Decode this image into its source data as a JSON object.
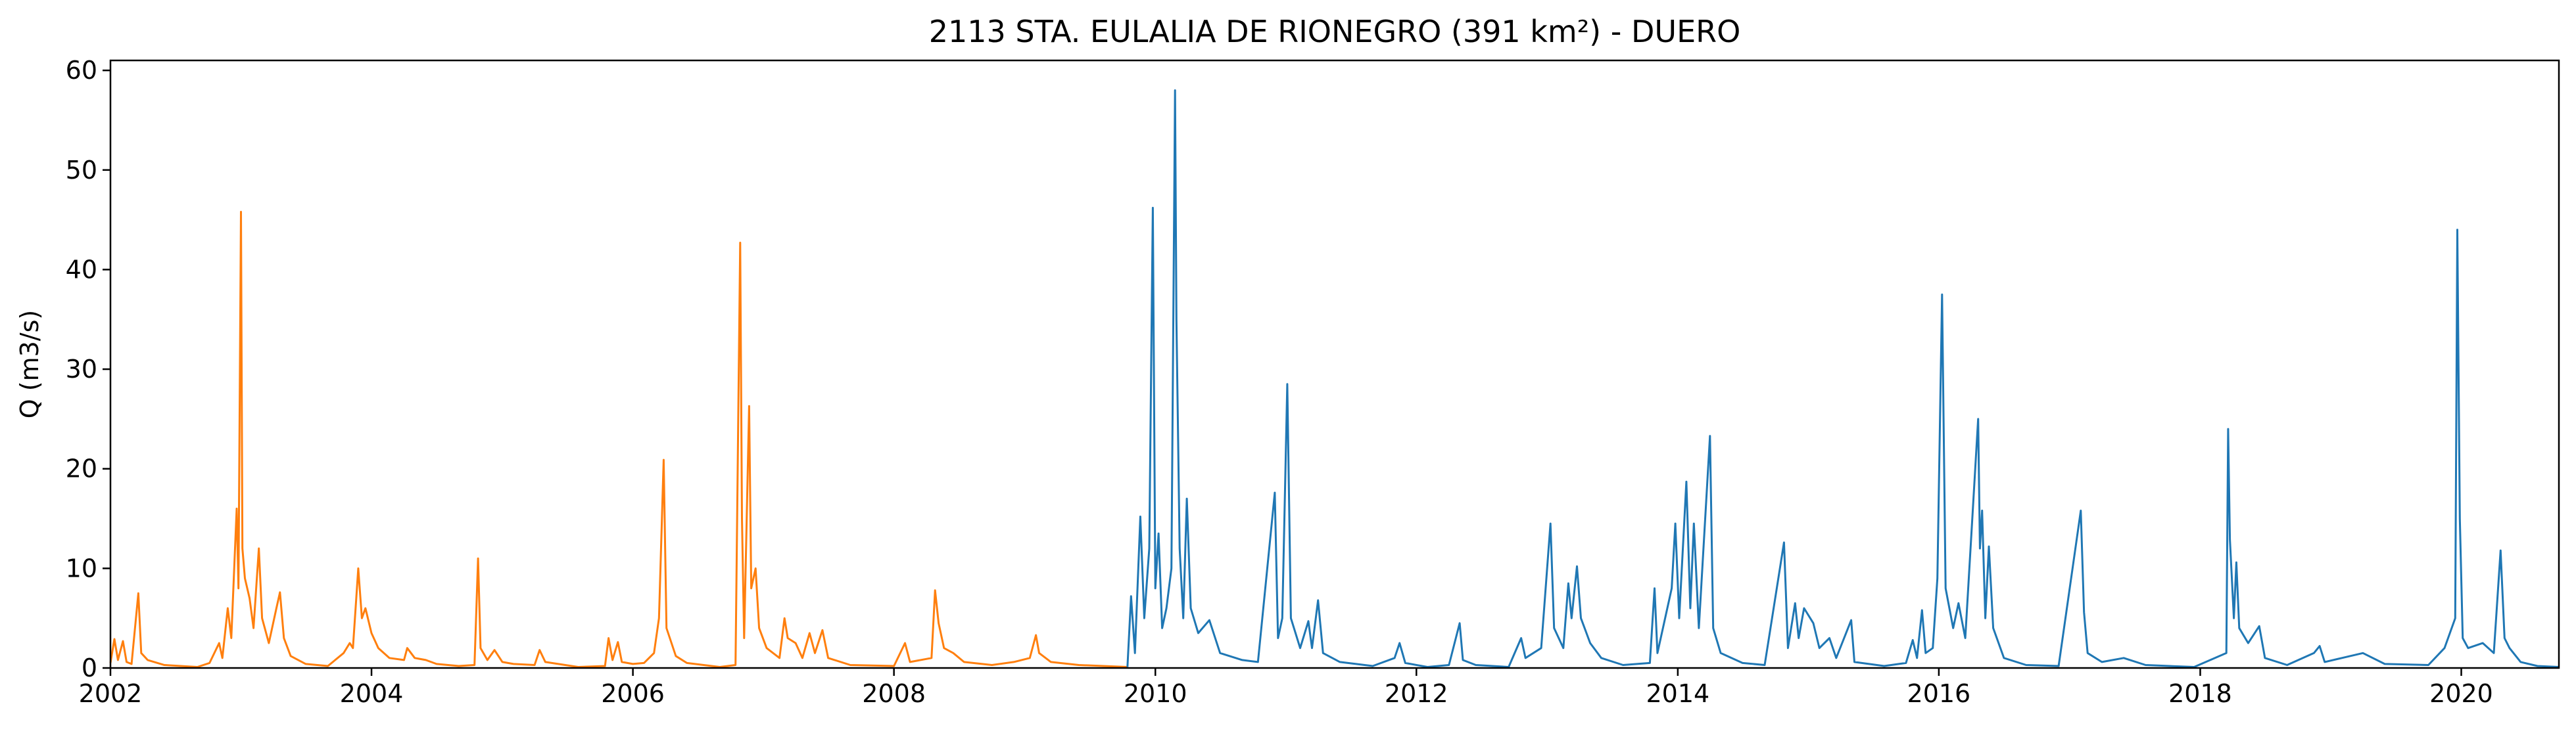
{
  "chart_data": {
    "type": "line",
    "title": "2113 STA. EULALIA DE RIONEGRO (391 km²) - DUERO",
    "xlabel": "",
    "ylabel": "Q (m3/s)",
    "xlim": [
      "2002-01-01",
      "2020-09-30"
    ],
    "ylim": [
      0,
      61
    ],
    "grid": false,
    "x_ticks": [
      "2002",
      "2004",
      "2006",
      "2008",
      "2010",
      "2012",
      "2014",
      "2016",
      "2018",
      "2020"
    ],
    "y_ticks": [
      0,
      10,
      20,
      30,
      40,
      50,
      60
    ],
    "series": [
      {
        "color": "#ff7f0e",
        "points": [
          [
            "2002-01-01",
            0.5
          ],
          [
            "2002-01-12",
            2.9
          ],
          [
            "2002-01-22",
            0.8
          ],
          [
            "2002-02-05",
            2.7
          ],
          [
            "2002-02-15",
            0.6
          ],
          [
            "2002-03-01",
            0.4
          ],
          [
            "2002-03-20",
            7.5
          ],
          [
            "2002-03-28",
            1.5
          ],
          [
            "2002-04-15",
            0.8
          ],
          [
            "2002-06-01",
            0.3
          ],
          [
            "2002-09-01",
            0.1
          ],
          [
            "2002-10-05",
            0.5
          ],
          [
            "2002-11-01",
            2.5
          ],
          [
            "2002-11-10",
            1.0
          ],
          [
            "2002-11-25",
            6.0
          ],
          [
            "2002-12-05",
            3.0
          ],
          [
            "2002-12-20",
            16.0
          ],
          [
            "2002-12-25",
            8.0
          ],
          [
            "2003-01-01",
            45.8
          ],
          [
            "2003-01-05",
            12.0
          ],
          [
            "2003-01-12",
            9.0
          ],
          [
            "2003-01-25",
            7.0
          ],
          [
            "2003-02-05",
            4.0
          ],
          [
            "2003-02-20",
            12.0
          ],
          [
            "2003-03-01",
            5.0
          ],
          [
            "2003-03-20",
            2.5
          ],
          [
            "2003-04-10",
            6.0
          ],
          [
            "2003-04-20",
            7.6
          ],
          [
            "2003-05-01",
            3.0
          ],
          [
            "2003-05-20",
            1.2
          ],
          [
            "2003-07-01",
            0.4
          ],
          [
            "2003-09-01",
            0.2
          ],
          [
            "2003-10-15",
            1.5
          ],
          [
            "2003-11-01",
            2.5
          ],
          [
            "2003-11-10",
            2.0
          ],
          [
            "2003-11-25",
            10.0
          ],
          [
            "2003-12-05",
            5.0
          ],
          [
            "2003-12-15",
            6.0
          ],
          [
            "2004-01-01",
            3.5
          ],
          [
            "2004-01-20",
            2.0
          ],
          [
            "2004-02-20",
            1.0
          ],
          [
            "2004-04-01",
            0.8
          ],
          [
            "2004-04-10",
            2.0
          ],
          [
            "2004-05-01",
            1.0
          ],
          [
            "2004-06-01",
            0.8
          ],
          [
            "2004-07-01",
            0.4
          ],
          [
            "2004-09-01",
            0.2
          ],
          [
            "2004-10-15",
            0.3
          ],
          [
            "2004-10-25",
            11.0
          ],
          [
            "2004-11-01",
            2.0
          ],
          [
            "2004-11-20",
            0.8
          ],
          [
            "2004-12-10",
            1.8
          ],
          [
            "2005-01-01",
            0.6
          ],
          [
            "2005-02-01",
            0.4
          ],
          [
            "2005-04-01",
            0.3
          ],
          [
            "2005-04-15",
            1.8
          ],
          [
            "2005-05-01",
            0.6
          ],
          [
            "2005-08-01",
            0.1
          ],
          [
            "2005-10-15",
            0.2
          ],
          [
            "2005-10-25",
            3.0
          ],
          [
            "2005-11-05",
            0.8
          ],
          [
            "2005-11-20",
            2.6
          ],
          [
            "2005-12-01",
            0.6
          ],
          [
            "2006-01-01",
            0.4
          ],
          [
            "2006-02-01",
            0.5
          ],
          [
            "2006-03-01",
            1.5
          ],
          [
            "2006-03-15",
            5.0
          ],
          [
            "2006-03-28",
            20.9
          ],
          [
            "2006-04-05",
            4.0
          ],
          [
            "2006-05-01",
            1.2
          ],
          [
            "2006-06-01",
            0.5
          ],
          [
            "2006-09-01",
            0.1
          ],
          [
            "2006-10-15",
            0.3
          ],
          [
            "2006-10-28",
            42.7
          ],
          [
            "2006-11-02",
            15.0
          ],
          [
            "2006-11-08",
            3.0
          ],
          [
            "2006-11-22",
            26.3
          ],
          [
            "2006-11-28",
            8.0
          ],
          [
            "2006-12-10",
            10.0
          ],
          [
            "2006-12-20",
            4.0
          ],
          [
            "2007-01-10",
            2.0
          ],
          [
            "2007-02-15",
            1.0
          ],
          [
            "2007-03-01",
            5.0
          ],
          [
            "2007-03-10",
            3.0
          ],
          [
            "2007-04-01",
            2.5
          ],
          [
            "2007-04-20",
            1.0
          ],
          [
            "2007-05-10",
            3.5
          ],
          [
            "2007-05-25",
            1.5
          ],
          [
            "2007-06-15",
            3.8
          ],
          [
            "2007-07-01",
            1.0
          ],
          [
            "2007-09-01",
            0.3
          ],
          [
            "2008-01-01",
            0.2
          ],
          [
            "2008-02-01",
            2.5
          ],
          [
            "2008-02-15",
            0.6
          ],
          [
            "2008-04-15",
            1.0
          ],
          [
            "2008-04-25",
            7.8
          ],
          [
            "2008-05-05",
            4.5
          ],
          [
            "2008-05-20",
            2.0
          ],
          [
            "2008-06-15",
            1.5
          ],
          [
            "2008-07-15",
            0.6
          ],
          [
            "2008-10-01",
            0.3
          ],
          [
            "2008-12-01",
            0.6
          ],
          [
            "2009-01-15",
            1.0
          ],
          [
            "2009-02-01",
            3.3
          ],
          [
            "2009-02-10",
            1.5
          ],
          [
            "2009-03-15",
            0.6
          ],
          [
            "2009-06-01",
            0.3
          ],
          [
            "2009-10-15",
            0.1
          ]
        ]
      },
      {
        "color": "#1f77b4",
        "points": [
          [
            "2009-10-15",
            0.1
          ],
          [
            "2009-10-25",
            7.2
          ],
          [
            "2009-11-05",
            1.5
          ],
          [
            "2009-11-20",
            15.2
          ],
          [
            "2009-12-01",
            5.0
          ],
          [
            "2009-12-15",
            12.0
          ],
          [
            "2009-12-25",
            46.2
          ],
          [
            "2010-01-01",
            8.0
          ],
          [
            "2010-01-10",
            13.5
          ],
          [
            "2010-01-20",
            4.0
          ],
          [
            "2010-02-01",
            6.0
          ],
          [
            "2010-02-15",
            10.0
          ],
          [
            "2010-02-25",
            58.0
          ],
          [
            "2010-03-01",
            35.0
          ],
          [
            "2010-03-10",
            12.0
          ],
          [
            "2010-03-20",
            5.0
          ],
          [
            "2010-03-30",
            17.0
          ],
          [
            "2010-04-10",
            6.0
          ],
          [
            "2010-05-01",
            3.5
          ],
          [
            "2010-06-01",
            4.8
          ],
          [
            "2010-07-01",
            1.5
          ],
          [
            "2010-09-01",
            0.8
          ],
          [
            "2010-10-15",
            0.6
          ],
          [
            "2010-12-01",
            17.6
          ],
          [
            "2010-12-10",
            3.0
          ],
          [
            "2010-12-22",
            5.0
          ],
          [
            "2011-01-05",
            28.5
          ],
          [
            "2011-01-15",
            5.0
          ],
          [
            "2011-02-10",
            2.0
          ],
          [
            "2011-03-05",
            4.7
          ],
          [
            "2011-03-15",
            2.0
          ],
          [
            "2011-04-01",
            6.8
          ],
          [
            "2011-04-15",
            1.5
          ],
          [
            "2011-06-01",
            0.6
          ],
          [
            "2011-09-01",
            0.2
          ],
          [
            "2011-11-01",
            1.0
          ],
          [
            "2011-11-15",
            2.5
          ],
          [
            "2011-12-01",
            0.5
          ],
          [
            "2012-02-01",
            0.1
          ],
          [
            "2012-04-01",
            0.3
          ],
          [
            "2012-05-01",
            4.5
          ],
          [
            "2012-05-10",
            0.8
          ],
          [
            "2012-06-15",
            0.3
          ],
          [
            "2012-09-15",
            0.1
          ],
          [
            "2012-10-20",
            3.0
          ],
          [
            "2012-11-01",
            1.0
          ],
          [
            "2012-12-15",
            2.0
          ],
          [
            "2013-01-10",
            14.5
          ],
          [
            "2013-01-20",
            4.0
          ],
          [
            "2013-02-15",
            2.0
          ],
          [
            "2013-03-01",
            8.5
          ],
          [
            "2013-03-10",
            5.0
          ],
          [
            "2013-03-25",
            10.2
          ],
          [
            "2013-04-05",
            5.0
          ],
          [
            "2013-05-01",
            2.5
          ],
          [
            "2013-06-01",
            1.0
          ],
          [
            "2013-08-01",
            0.3
          ],
          [
            "2013-10-15",
            0.5
          ],
          [
            "2013-10-28",
            8.0
          ],
          [
            "2013-11-05",
            1.5
          ],
          [
            "2013-12-15",
            8.0
          ],
          [
            "2013-12-25",
            14.5
          ],
          [
            "2014-01-05",
            5.0
          ],
          [
            "2014-01-25",
            18.7
          ],
          [
            "2014-02-05",
            6.0
          ],
          [
            "2014-02-15",
            14.5
          ],
          [
            "2014-03-01",
            4.0
          ],
          [
            "2014-04-01",
            23.3
          ],
          [
            "2014-04-10",
            4.0
          ],
          [
            "2014-05-01",
            1.5
          ],
          [
            "2014-07-01",
            0.5
          ],
          [
            "2014-09-01",
            0.3
          ],
          [
            "2014-10-25",
            12.6
          ],
          [
            "2014-11-05",
            2.0
          ],
          [
            "2014-11-25",
            6.5
          ],
          [
            "2014-12-05",
            3.0
          ],
          [
            "2014-12-20",
            6.0
          ],
          [
            "2015-01-15",
            4.5
          ],
          [
            "2015-02-01",
            2.0
          ],
          [
            "2015-03-01",
            3.0
          ],
          [
            "2015-03-20",
            1.0
          ],
          [
            "2015-05-01",
            4.8
          ],
          [
            "2015-05-10",
            0.6
          ],
          [
            "2015-08-01",
            0.2
          ],
          [
            "2015-10-01",
            0.5
          ],
          [
            "2015-10-20",
            2.8
          ],
          [
            "2015-11-01",
            1.0
          ],
          [
            "2015-11-15",
            5.8
          ],
          [
            "2015-11-25",
            1.5
          ],
          [
            "2015-12-15",
            2.0
          ],
          [
            "2015-12-28",
            9.0
          ],
          [
            "2016-01-10",
            37.5
          ],
          [
            "2016-01-20",
            8.0
          ],
          [
            "2016-02-10",
            4.0
          ],
          [
            "2016-02-25",
            6.5
          ],
          [
            "2016-03-15",
            3.0
          ],
          [
            "2016-04-20",
            25.0
          ],
          [
            "2016-04-25",
            12.0
          ],
          [
            "2016-05-01",
            15.8
          ],
          [
            "2016-05-10",
            5.0
          ],
          [
            "2016-05-20",
            12.2
          ],
          [
            "2016-06-01",
            4.0
          ],
          [
            "2016-07-01",
            1.0
          ],
          [
            "2016-09-01",
            0.3
          ],
          [
            "2016-12-01",
            0.2
          ],
          [
            "2017-02-01",
            15.8
          ],
          [
            "2017-02-10",
            5.6
          ],
          [
            "2017-02-20",
            1.5
          ],
          [
            "2017-04-01",
            0.6
          ],
          [
            "2017-06-01",
            1.0
          ],
          [
            "2017-08-01",
            0.3
          ],
          [
            "2017-12-15",
            0.1
          ],
          [
            "2018-03-15",
            1.5
          ],
          [
            "2018-03-20",
            24.0
          ],
          [
            "2018-03-25",
            12.9
          ],
          [
            "2018-04-05",
            5.0
          ],
          [
            "2018-04-12",
            10.6
          ],
          [
            "2018-04-20",
            4.0
          ],
          [
            "2018-05-15",
            2.5
          ],
          [
            "2018-06-15",
            4.2
          ],
          [
            "2018-07-01",
            1.0
          ],
          [
            "2018-09-01",
            0.3
          ],
          [
            "2018-11-15",
            1.5
          ],
          [
            "2018-12-01",
            2.2
          ],
          [
            "2018-12-15",
            0.6
          ],
          [
            "2019-02-01",
            1.0
          ],
          [
            "2019-04-01",
            1.5
          ],
          [
            "2019-06-01",
            0.4
          ],
          [
            "2019-10-01",
            0.3
          ],
          [
            "2019-11-15",
            2.0
          ],
          [
            "2019-12-15",
            5.0
          ],
          [
            "2019-12-21",
            44.0
          ],
          [
            "2019-12-28",
            15.0
          ],
          [
            "2020-01-05",
            3.0
          ],
          [
            "2020-01-20",
            2.0
          ],
          [
            "2020-03-01",
            2.5
          ],
          [
            "2020-04-01",
            1.5
          ],
          [
            "2020-04-20",
            11.8
          ],
          [
            "2020-05-01",
            3.0
          ],
          [
            "2020-05-15",
            2.0
          ],
          [
            "2020-06-15",
            0.6
          ],
          [
            "2020-08-01",
            0.2
          ],
          [
            "2020-09-30",
            0.1
          ]
        ]
      }
    ]
  }
}
